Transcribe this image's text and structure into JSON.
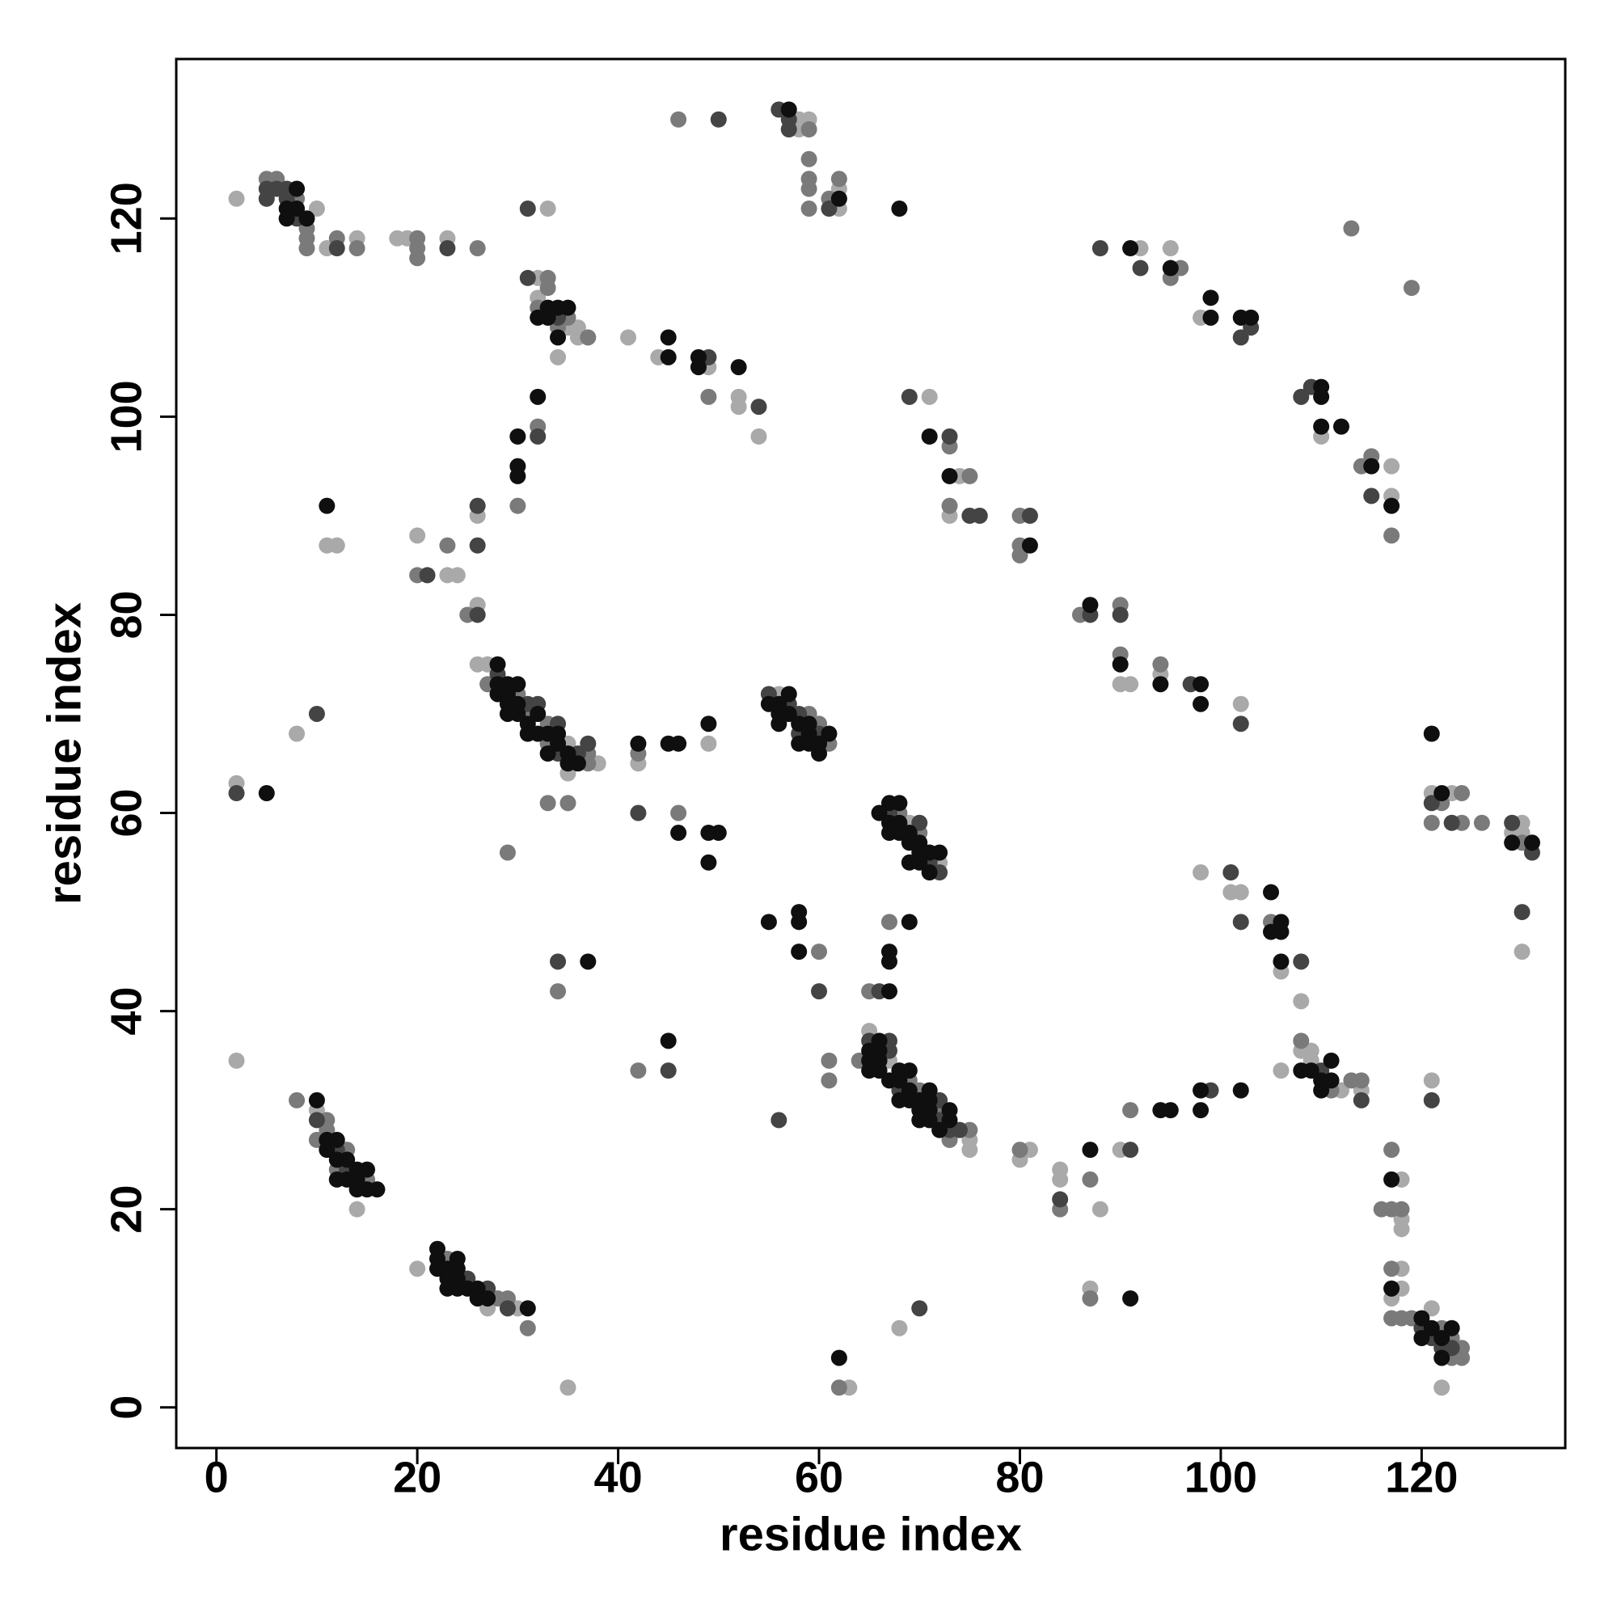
{
  "chart_data": {
    "type": "scatter",
    "x_label": "residue index",
    "y_label": "residue index",
    "xlim": [
      -4,
      134.3
    ],
    "ylim": [
      -4.1,
      136.1
    ],
    "xticks": [
      0,
      20,
      40,
      60,
      80,
      100,
      120
    ],
    "yticks": [
      0,
      20,
      40,
      60,
      80,
      100,
      120
    ],
    "grid": false,
    "series": [
      {
        "color": "#a9a9a9",
        "x": [
          2,
          10,
          11,
          14,
          18,
          19,
          23,
          58,
          58,
          59,
          62,
          62,
          33,
          32,
          32,
          35,
          36,
          36,
          34,
          41,
          44,
          49,
          52,
          52,
          54,
          26,
          11,
          12,
          20,
          23,
          24,
          26,
          26,
          27,
          35,
          35,
          38,
          42,
          49,
          56,
          69,
          72,
          65,
          67,
          75,
          75,
          2,
          10,
          14,
          20,
          27,
          30,
          35,
          92,
          95,
          98,
          110,
          117,
          117,
          71,
          74,
          73,
          90,
          91,
          94,
          102,
          121,
          123,
          130,
          129,
          130,
          130,
          98,
          101,
          102,
          106,
          108,
          108,
          109,
          109,
          112,
          114,
          106,
          90,
          81,
          80,
          84,
          84,
          88,
          87,
          121,
          118,
          118,
          118,
          118,
          118,
          117,
          121,
          122,
          63,
          68,
          2,
          8
        ],
        "values": [
          122,
          121,
          117,
          118,
          118,
          118,
          118,
          130,
          129,
          130,
          123,
          121,
          121,
          114,
          112,
          109,
          109,
          108,
          106,
          108,
          106,
          105,
          102,
          101,
          98,
          90,
          87,
          87,
          88,
          84,
          84,
          81,
          75,
          75,
          67,
          64,
          65,
          65,
          67,
          72,
          59,
          55,
          38,
          35,
          27,
          26,
          35,
          30,
          20,
          14,
          10,
          10,
          2,
          117,
          117,
          110,
          98,
          95,
          92,
          102,
          94,
          90,
          73,
          73,
          74,
          71,
          62,
          62,
          59,
          58,
          58,
          46,
          54,
          52,
          52,
          44,
          41,
          36,
          36,
          35,
          32,
          32,
          34,
          26,
          26,
          25,
          24,
          23,
          20,
          12,
          33,
          23,
          19,
          18,
          14,
          12,
          11,
          10,
          2,
          2,
          8,
          63,
          68
        ]
      },
      {
        "color": "#7a7a7a",
        "x": [
          5,
          6,
          8,
          9,
          9,
          9,
          12,
          14,
          20,
          20,
          20,
          26,
          46,
          59,
          59,
          59,
          59,
          59,
          61,
          62,
          33,
          33,
          32,
          34,
          35,
          37,
          49,
          32,
          30,
          20,
          23,
          25,
          27,
          30,
          31,
          33,
          33,
          37,
          37,
          33,
          35,
          29,
          42,
          46,
          59,
          60,
          61,
          68,
          70,
          60,
          67,
          65,
          34,
          42,
          64,
          69,
          70,
          72,
          75,
          73,
          61,
          61,
          8,
          11,
          11,
          10,
          13,
          12,
          15,
          23,
          28,
          29,
          31,
          96,
          95,
          113,
          119,
          114,
          115,
          117,
          73,
          75,
          73,
          80,
          80,
          80,
          86,
          90,
          90,
          94,
          122,
          124,
          121,
          124,
          126,
          130,
          105,
          108,
          111,
          113,
          114,
          91,
          80,
          87,
          84,
          87,
          117,
          116,
          117,
          118,
          117,
          117,
          118,
          119,
          122,
          123,
          124,
          123,
          124,
          62
        ],
        "values": [
          124,
          124,
          122,
          119,
          118,
          117,
          118,
          117,
          118,
          117,
          116,
          117,
          130,
          129,
          126,
          124,
          123,
          121,
          122,
          124,
          114,
          113,
          111,
          109,
          110,
          108,
          102,
          99,
          91,
          84,
          87,
          80,
          73,
          72,
          70,
          69,
          67,
          66,
          65,
          61,
          61,
          56,
          66,
          60,
          70,
          69,
          67,
          60,
          58,
          46,
          49,
          42,
          42,
          34,
          35,
          33,
          32,
          30,
          28,
          27,
          35,
          33,
          31,
          29,
          28,
          27,
          26,
          24,
          23,
          15,
          11,
          11,
          8,
          115,
          114,
          119,
          113,
          95,
          96,
          88,
          97,
          94,
          91,
          90,
          87,
          86,
          80,
          81,
          76,
          75,
          61,
          62,
          59,
          59,
          59,
          57,
          49,
          37,
          32,
          33,
          33,
          30,
          26,
          23,
          20,
          11,
          26,
          20,
          20,
          20,
          14,
          9,
          9,
          9,
          8,
          7,
          6,
          5,
          5,
          2
        ]
      },
      {
        "color": "#444444",
        "x": [
          5,
          5,
          6,
          7,
          7,
          8,
          12,
          23,
          50,
          56,
          57,
          57,
          61,
          31,
          31,
          34,
          49,
          54,
          32,
          26,
          26,
          21,
          26,
          28,
          31,
          32,
          34,
          34,
          36,
          37,
          42,
          55,
          57,
          58,
          58,
          60,
          67,
          70,
          71,
          72,
          60,
          66,
          34,
          45,
          65,
          67,
          67,
          68,
          72,
          72,
          73,
          74,
          56,
          10,
          12,
          13,
          25,
          27,
          29,
          88,
          92,
          103,
          102,
          108,
          109,
          115,
          69,
          73,
          75,
          76,
          81,
          87,
          90,
          97,
          102,
          121,
          123,
          129,
          131,
          130,
          101,
          102,
          108,
          110,
          114,
          99,
          91,
          84,
          121,
          120,
          121,
          122,
          123,
          70,
          2,
          10
        ],
        "values": [
          123,
          122,
          123,
          123,
          122,
          120,
          117,
          117,
          130,
          131,
          130,
          129,
          121,
          121,
          114,
          110,
          106,
          101,
          98,
          91,
          87,
          84,
          80,
          74,
          71,
          71,
          69,
          66,
          66,
          67,
          60,
          72,
          71,
          70,
          68,
          68,
          60,
          59,
          55,
          54,
          42,
          42,
          45,
          34,
          37,
          37,
          36,
          32,
          31,
          29,
          28,
          28,
          29,
          29,
          26,
          24,
          13,
          12,
          10,
          117,
          115,
          109,
          108,
          102,
          103,
          92,
          102,
          98,
          90,
          90,
          90,
          80,
          80,
          73,
          69,
          61,
          59,
          59,
          56,
          50,
          54,
          49,
          45,
          34,
          31,
          32,
          26,
          21,
          31,
          8,
          7,
          6,
          6,
          10,
          62,
          70
        ]
      },
      {
        "color": "#0f0f0f",
        "x": [
          7,
          7,
          8,
          8,
          9,
          57,
          62,
          68,
          32,
          33,
          33,
          34,
          34,
          35,
          45,
          45,
          48,
          48,
          52,
          32,
          30,
          30,
          30,
          11,
          28,
          28,
          28,
          29,
          29,
          29,
          29,
          30,
          30,
          30,
          31,
          31,
          32,
          32,
          33,
          33,
          34,
          34,
          35,
          35,
          36,
          42,
          45,
          46,
          49,
          46,
          49,
          50,
          49,
          55,
          56,
          57,
          56,
          57,
          56,
          58,
          59,
          59,
          61,
          58,
          59,
          60,
          60,
          67,
          68,
          66,
          67,
          68,
          67,
          68,
          69,
          69,
          70,
          70,
          71,
          72,
          69,
          70,
          71,
          55,
          58,
          58,
          58,
          69,
          67,
          67,
          67,
          37,
          45,
          66,
          65,
          66,
          65,
          66,
          68,
          69,
          65,
          66,
          67,
          68,
          71,
          69,
          70,
          71,
          68,
          69,
          70,
          71,
          73,
          70,
          71,
          73,
          72,
          10,
          11,
          12,
          11,
          12,
          13,
          14,
          15,
          12,
          13,
          14,
          14,
          15,
          16,
          22,
          22,
          24,
          22,
          23,
          24,
          23,
          24,
          23,
          24,
          25,
          26,
          26,
          27,
          31,
          91,
          95,
          99,
          99,
          102,
          103,
          110,
          110,
          110,
          112,
          115,
          117,
          71,
          73,
          81,
          87,
          90,
          94,
          98,
          98,
          121,
          122,
          129,
          131,
          105,
          106,
          105,
          106,
          106,
          111,
          108,
          109,
          110,
          111,
          110,
          102,
          98,
          98,
          94,
          95,
          87,
          91,
          117,
          117,
          120,
          121,
          123,
          120,
          122,
          122,
          62,
          5
        ],
        "values": [
          121,
          120,
          123,
          121,
          120,
          131,
          122,
          121,
          110,
          111,
          110,
          111,
          108,
          111,
          108,
          106,
          106,
          105,
          105,
          102,
          98,
          95,
          94,
          91,
          75,
          73,
          72,
          73,
          72,
          71,
          70,
          73,
          71,
          70,
          69,
          68,
          70,
          68,
          68,
          66,
          68,
          67,
          66,
          65,
          65,
          67,
          67,
          67,
          69,
          58,
          58,
          58,
          55,
          71,
          71,
          72,
          70,
          70,
          69,
          69,
          69,
          68,
          68,
          67,
          67,
          67,
          66,
          61,
          61,
          60,
          59,
          59,
          58,
          58,
          58,
          57,
          57,
          56,
          56,
          56,
          55,
          55,
          54,
          49,
          50,
          49,
          46,
          49,
          46,
          45,
          42,
          45,
          37,
          37,
          36,
          36,
          35,
          35,
          34,
          34,
          34,
          34,
          33,
          33,
          32,
          32,
          31,
          31,
          31,
          31,
          30,
          30,
          30,
          29,
          29,
          29,
          28,
          31,
          27,
          27,
          26,
          25,
          25,
          24,
          24,
          23,
          23,
          23,
          22,
          22,
          22,
          16,
          15,
          15,
          14,
          14,
          14,
          13,
          13,
          12,
          12,
          12,
          12,
          11,
          11,
          10,
          117,
          115,
          112,
          110,
          110,
          110,
          103,
          102,
          99,
          99,
          95,
          91,
          98,
          94,
          87,
          81,
          75,
          73,
          73,
          71,
          68,
          62,
          57,
          57,
          52,
          49,
          48,
          48,
          45,
          35,
          34,
          34,
          33,
          33,
          32,
          32,
          32,
          30,
          30,
          30,
          26,
          11,
          23,
          12,
          9,
          8,
          8,
          7,
          7,
          5,
          5,
          62
        ]
      }
    ]
  }
}
